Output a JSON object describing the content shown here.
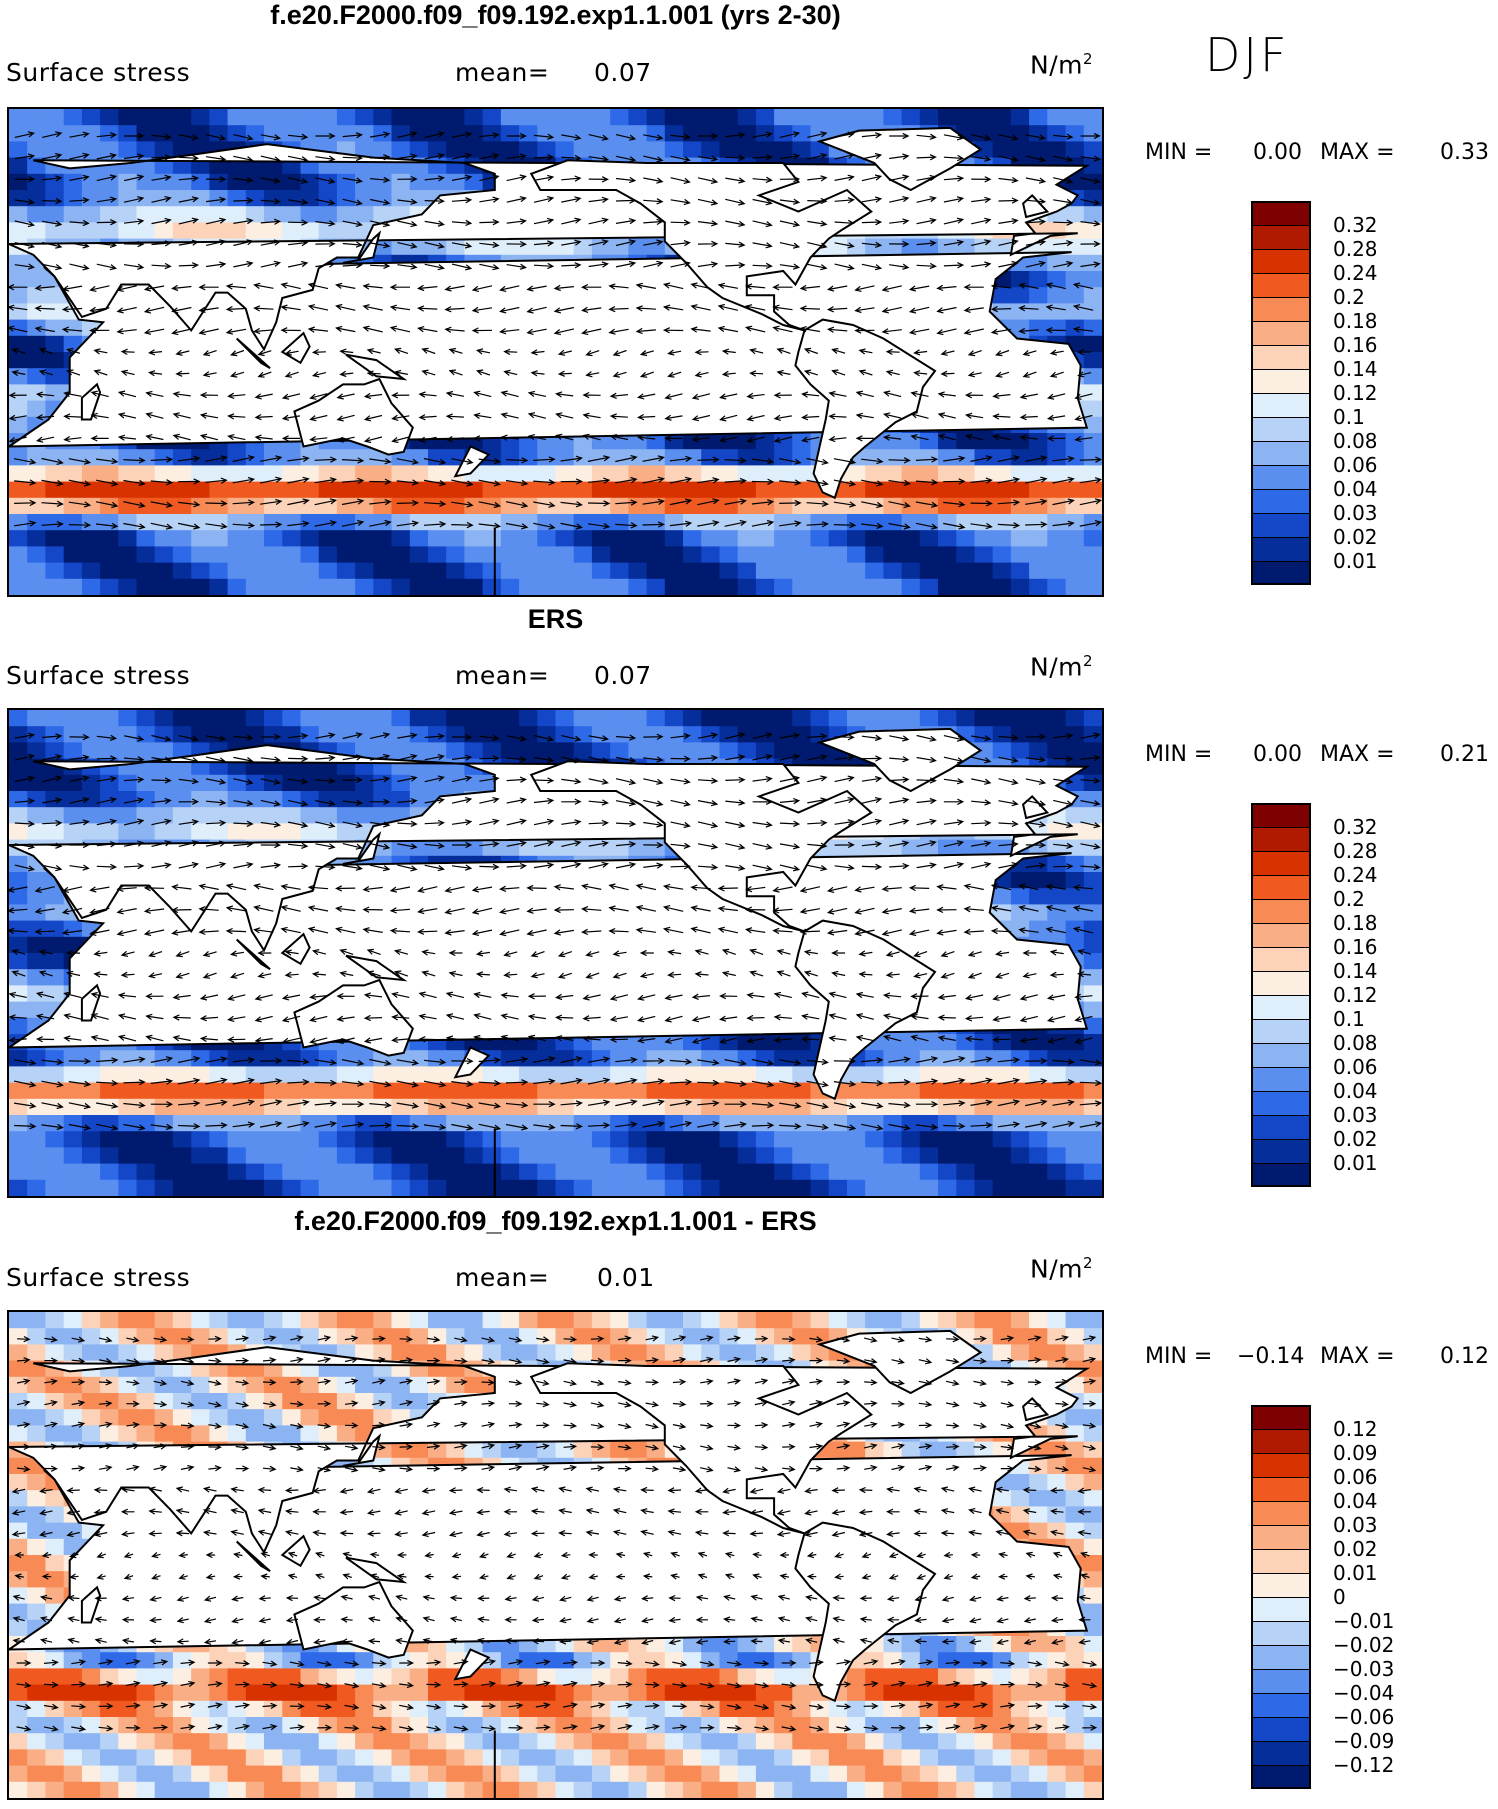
{
  "season": "DJF",
  "panels": [
    {
      "id": "model",
      "title": "f.e20.F2000.f09_f09.192.exp1.1.001 (yrs 2-30)",
      "variable": "Surface stress",
      "mean_label": "mean=",
      "mean_value": "0.07",
      "units_base": "N/m",
      "units_exp": "2",
      "min_label": "MIN =",
      "min_value": "0.00",
      "max_label": "MAX =",
      "max_value": "0.33",
      "scale": "seq",
      "colorbar": {
        "labels": [
          "0.32",
          "0.28",
          "0.24",
          "0.2",
          "0.18",
          "0.16",
          "0.14",
          "0.12",
          "0.1",
          "0.08",
          "0.06",
          "0.04",
          "0.03",
          "0.02",
          "0.01"
        ],
        "colors": [
          "#7f0000",
          "#b01a00",
          "#d83200",
          "#f05a20",
          "#f78a55",
          "#f9ae85",
          "#fcd2b8",
          "#fdeee2",
          "#dfeefb",
          "#b6d2f7",
          "#8cb3f2",
          "#5a8ff0",
          "#2e6ae8",
          "#1447c8",
          "#052e9a",
          "#001a70"
        ]
      }
    },
    {
      "id": "obs",
      "title": "ERS",
      "variable": "Surface stress",
      "mean_label": "mean=",
      "mean_value": "0.07",
      "units_base": "N/m",
      "units_exp": "2",
      "min_label": "MIN =",
      "min_value": "0.00",
      "max_label": "MAX =",
      "max_value": "0.21",
      "scale": "seq",
      "colorbar": {
        "labels": [
          "0.32",
          "0.28",
          "0.24",
          "0.2",
          "0.18",
          "0.16",
          "0.14",
          "0.12",
          "0.1",
          "0.08",
          "0.06",
          "0.04",
          "0.03",
          "0.02",
          "0.01"
        ],
        "colors": [
          "#7f0000",
          "#b01a00",
          "#d83200",
          "#f05a20",
          "#f78a55",
          "#f9ae85",
          "#fcd2b8",
          "#fdeee2",
          "#dfeefb",
          "#b6d2f7",
          "#8cb3f2",
          "#5a8ff0",
          "#2e6ae8",
          "#1447c8",
          "#052e9a",
          "#001a70"
        ]
      }
    },
    {
      "id": "diff",
      "title": "f.e20.F2000.f09_f09.192.exp1.1.001 - ERS",
      "variable": "Surface stress",
      "mean_label": "mean=",
      "mean_value": "0.01",
      "units_base": "N/m",
      "units_exp": "2",
      "min_label": "MIN =",
      "min_value": "−0.14",
      "max_label": "MAX =",
      "max_value": "0.12",
      "scale": "div",
      "colorbar": {
        "labels": [
          "0.12",
          "0.09",
          "0.06",
          "0.04",
          "0.03",
          "0.02",
          "0.01",
          "0",
          "−0.01",
          "−0.02",
          "−0.03",
          "−0.04",
          "−0.06",
          "−0.09",
          "−0.12"
        ],
        "colors": [
          "#7f0000",
          "#b01a00",
          "#d83200",
          "#f05a20",
          "#f78a55",
          "#f9ae85",
          "#fcd2b8",
          "#fdeee2",
          "#dfeefb",
          "#b6d2f7",
          "#8cb3f2",
          "#5a8ff0",
          "#2e6ae8",
          "#1447c8",
          "#052e9a",
          "#001a70"
        ]
      }
    }
  ]
}
